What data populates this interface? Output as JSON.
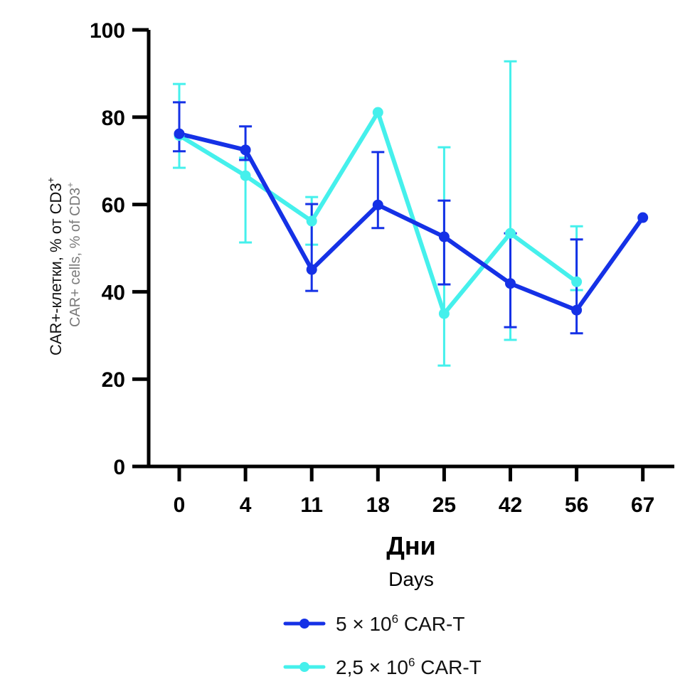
{
  "chart_data": {
    "type": "line",
    "title": "",
    "ylabel": "CAR+-клетки, % от CD3+",
    "ylabel_secondary": "CAR+ cells, % of CD3+",
    "xlabel": "Дни",
    "xlabel_secondary": "Days",
    "ylim": [
      0,
      100
    ],
    "yticks": [
      "0",
      "20",
      "40",
      "60",
      "80",
      "100"
    ],
    "categories": [
      "0",
      "4",
      "11",
      "18",
      "25",
      "42",
      "56",
      "67"
    ],
    "grid": false,
    "legend_position": "bottom",
    "series": [
      {
        "name": "5 × 10⁶ CAR-T",
        "color": "#1531e6",
        "values": [
          76.2,
          72.5,
          45.1,
          59.9,
          52.6,
          41.9,
          35.8,
          57.0
        ],
        "error_upper": [
          83.4,
          77.9,
          60.1,
          72.0,
          60.9,
          53.4,
          52.0,
          null
        ],
        "error_lower": [
          72.2,
          70.2,
          40.2,
          54.6,
          41.7,
          31.9,
          30.5,
          null
        ]
      },
      {
        "name": "2,5 × 10⁶ CAR-T",
        "color": "#45f0ec",
        "values": [
          75.8,
          66.6,
          56.2,
          81.1,
          35.0,
          53.4,
          42.3,
          null
        ],
        "error_upper": [
          87.6,
          70.7,
          61.7,
          null,
          73.1,
          92.8,
          55.0,
          null
        ],
        "error_lower": [
          68.4,
          51.3,
          50.8,
          null,
          23.1,
          29.0,
          40.4,
          null
        ]
      }
    ]
  },
  "legend": {
    "items": [
      {
        "prefix": "5 × 10",
        "sup": "6",
        "suffix": " CAR-T"
      },
      {
        "prefix": "2,5 × 10",
        "sup": "6",
        "suffix": " CAR-T"
      }
    ]
  },
  "axis": {
    "ylabel_main": "CAR+-клетки, % от CD3",
    "ylabel_main_sup": "+",
    "ylabel_sub": "CAR+ cells, % of CD3",
    "ylabel_sub_sup": "+"
  }
}
